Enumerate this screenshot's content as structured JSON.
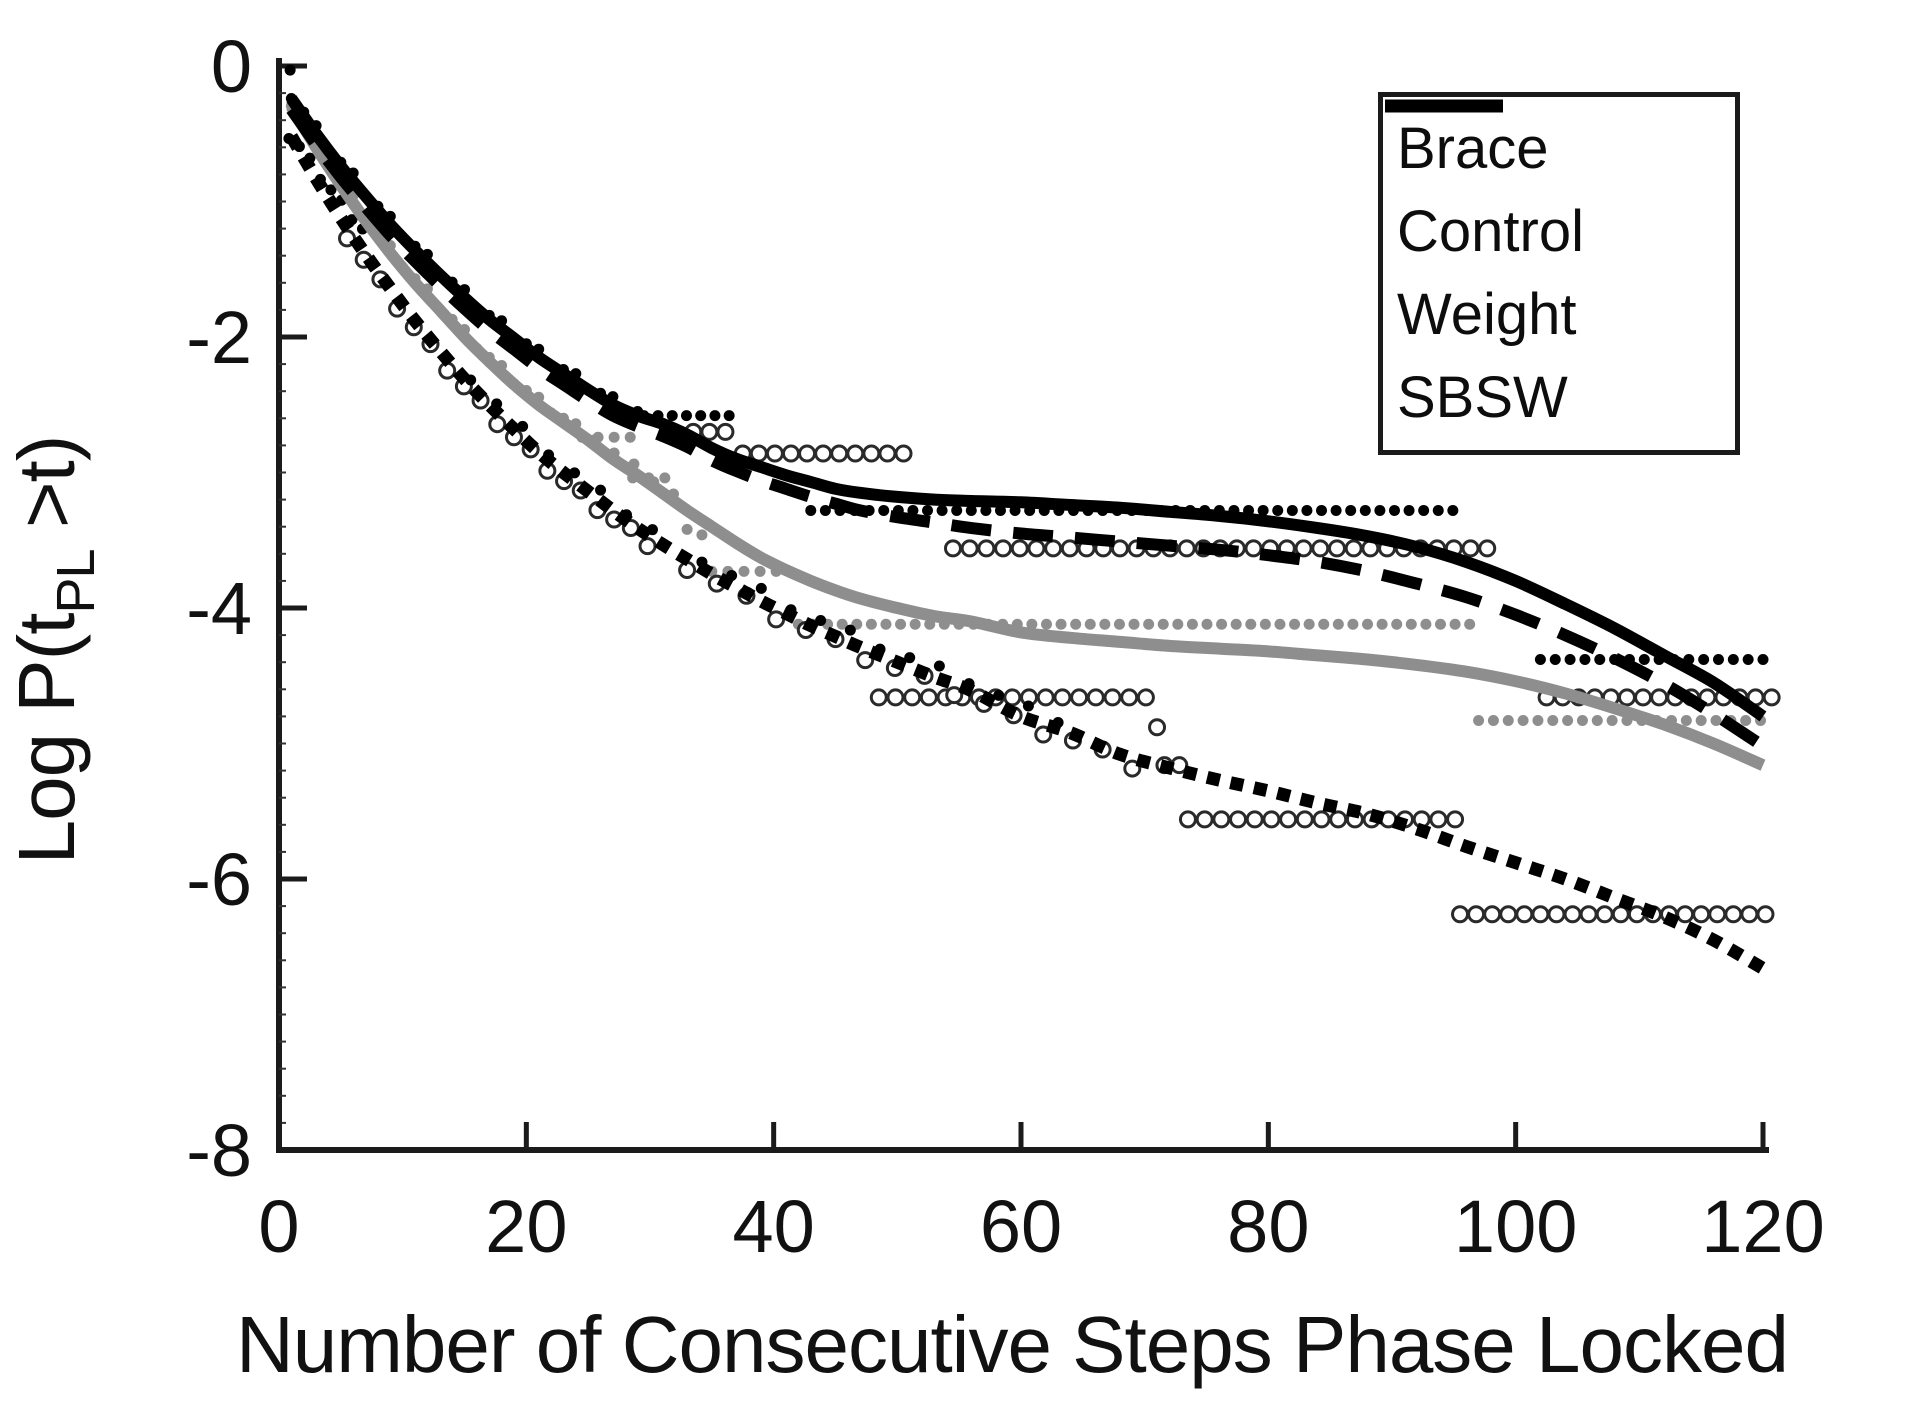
{
  "chart_data": {
    "type": "line",
    "title": "",
    "xlabel": "Number of Consecutive Steps Phase Locked",
    "ylabel": "Log P(t_PL >t)",
    "ylabel_parts": {
      "pre": "Log P(t",
      "sub": "PL",
      "post": " >t)"
    },
    "xlim": [
      0,
      122
    ],
    "ylim": [
      -8,
      0
    ],
    "xticks": [
      0,
      20,
      40,
      60,
      80,
      100,
      120
    ],
    "yticks": [
      0,
      -2,
      -4,
      -6,
      -8
    ],
    "grid": false,
    "background": "#ffffff",
    "colors": {
      "black": "#000000",
      "gray": "#8e8e8e",
      "axis": "#1b1b1b",
      "circle_stroke": "#2a2a2a"
    },
    "legend": {
      "position": "top-right",
      "entries": [
        {
          "label": "Brace",
          "color": "#8e8e8e",
          "dash": "",
          "width": 13
        },
        {
          "label": "Control",
          "color": "#000000",
          "dash": "",
          "width": 13
        },
        {
          "label": "Weight",
          "color": "#000000",
          "dash": "36 20",
          "width": 12
        },
        {
          "label": "SBSW",
          "color": "#000000",
          "dash": "14 12",
          "width": 13
        }
      ]
    },
    "series": [
      {
        "name": "Brace",
        "style": "solid",
        "color": "#8e8e8e",
        "width": 12,
        "dash": "",
        "points": [
          [
            1,
            -0.3
          ],
          [
            3,
            -0.6
          ],
          [
            5,
            -0.88
          ],
          [
            7,
            -1.14
          ],
          [
            9,
            -1.38
          ],
          [
            11,
            -1.6
          ],
          [
            13,
            -1.8
          ],
          [
            15,
            -2.0
          ],
          [
            17,
            -2.18
          ],
          [
            19,
            -2.35
          ],
          [
            21,
            -2.5
          ],
          [
            23,
            -2.63
          ],
          [
            25,
            -2.76
          ],
          [
            27,
            -2.9
          ],
          [
            29,
            -3.02
          ],
          [
            31,
            -3.15
          ],
          [
            33,
            -3.28
          ],
          [
            35,
            -3.4
          ],
          [
            37,
            -3.52
          ],
          [
            39,
            -3.63
          ],
          [
            41,
            -3.72
          ],
          [
            43,
            -3.8
          ],
          [
            45,
            -3.87
          ],
          [
            47,
            -3.93
          ],
          [
            50,
            -4.0
          ],
          [
            53,
            -4.06
          ],
          [
            56,
            -4.1
          ],
          [
            60,
            -4.18
          ],
          [
            64,
            -4.22
          ],
          [
            68,
            -4.25
          ],
          [
            72,
            -4.28
          ],
          [
            76,
            -4.3
          ],
          [
            80,
            -4.32
          ],
          [
            84,
            -4.35
          ],
          [
            88,
            -4.38
          ],
          [
            92,
            -4.42
          ],
          [
            96,
            -4.47
          ],
          [
            100,
            -4.54
          ],
          [
            104,
            -4.63
          ],
          [
            108,
            -4.74
          ],
          [
            112,
            -4.86
          ],
          [
            116,
            -5.0
          ],
          [
            120,
            -5.16
          ]
        ]
      },
      {
        "name": "Control",
        "style": "solid",
        "color": "#000000",
        "width": 12,
        "dash": "",
        "points": [
          [
            1,
            -0.24
          ],
          [
            3,
            -0.5
          ],
          [
            5,
            -0.74
          ],
          [
            7,
            -0.96
          ],
          [
            9,
            -1.17
          ],
          [
            11,
            -1.36
          ],
          [
            13,
            -1.54
          ],
          [
            15,
            -1.71
          ],
          [
            17,
            -1.87
          ],
          [
            19,
            -2.01
          ],
          [
            21,
            -2.15
          ],
          [
            23,
            -2.27
          ],
          [
            25,
            -2.39
          ],
          [
            27,
            -2.5
          ],
          [
            29,
            -2.58
          ],
          [
            31,
            -2.64
          ],
          [
            33,
            -2.72
          ],
          [
            35,
            -2.82
          ],
          [
            37,
            -2.9
          ],
          [
            39,
            -2.96
          ],
          [
            41,
            -3.02
          ],
          [
            43,
            -3.07
          ],
          [
            45,
            -3.12
          ],
          [
            47,
            -3.15
          ],
          [
            50,
            -3.18
          ],
          [
            53,
            -3.2
          ],
          [
            56,
            -3.21
          ],
          [
            60,
            -3.22
          ],
          [
            64,
            -3.24
          ],
          [
            68,
            -3.26
          ],
          [
            72,
            -3.29
          ],
          [
            76,
            -3.32
          ],
          [
            80,
            -3.36
          ],
          [
            84,
            -3.41
          ],
          [
            88,
            -3.47
          ],
          [
            92,
            -3.55
          ],
          [
            96,
            -3.66
          ],
          [
            100,
            -3.8
          ],
          [
            104,
            -3.97
          ],
          [
            108,
            -4.15
          ],
          [
            112,
            -4.35
          ],
          [
            116,
            -4.55
          ],
          [
            120,
            -4.8
          ]
        ]
      },
      {
        "name": "Weight",
        "style": "dashed",
        "color": "#000000",
        "width": 12,
        "dash": "40 22",
        "points": [
          [
            1,
            -0.32
          ],
          [
            3,
            -0.58
          ],
          [
            5,
            -0.82
          ],
          [
            7,
            -1.04
          ],
          [
            9,
            -1.25
          ],
          [
            11,
            -1.44
          ],
          [
            13,
            -1.62
          ],
          [
            15,
            -1.79
          ],
          [
            17,
            -1.95
          ],
          [
            19,
            -2.09
          ],
          [
            21,
            -2.23
          ],
          [
            23,
            -2.35
          ],
          [
            25,
            -2.47
          ],
          [
            27,
            -2.58
          ],
          [
            29,
            -2.66
          ],
          [
            31,
            -2.73
          ],
          [
            33,
            -2.81
          ],
          [
            35,
            -2.91
          ],
          [
            37,
            -2.99
          ],
          [
            39,
            -3.06
          ],
          [
            41,
            -3.12
          ],
          [
            43,
            -3.18
          ],
          [
            45,
            -3.23
          ],
          [
            47,
            -3.28
          ],
          [
            50,
            -3.33
          ],
          [
            53,
            -3.37
          ],
          [
            56,
            -3.41
          ],
          [
            60,
            -3.45
          ],
          [
            64,
            -3.48
          ],
          [
            68,
            -3.51
          ],
          [
            72,
            -3.54
          ],
          [
            76,
            -3.57
          ],
          [
            80,
            -3.61
          ],
          [
            84,
            -3.66
          ],
          [
            88,
            -3.73
          ],
          [
            92,
            -3.82
          ],
          [
            96,
            -3.92
          ],
          [
            100,
            -4.05
          ],
          [
            104,
            -4.2
          ],
          [
            108,
            -4.37
          ],
          [
            112,
            -4.56
          ],
          [
            116,
            -4.78
          ],
          [
            120,
            -5.02
          ]
        ]
      },
      {
        "name": "SBSW",
        "style": "dotted",
        "color": "#000000",
        "width": 13,
        "dash": "13 11",
        "points": [
          [
            1,
            -0.52
          ],
          [
            3,
            -0.83
          ],
          [
            5,
            -1.12
          ],
          [
            7,
            -1.39
          ],
          [
            9,
            -1.64
          ],
          [
            11,
            -1.88
          ],
          [
            13,
            -2.1
          ],
          [
            15,
            -2.31
          ],
          [
            17,
            -2.5
          ],
          [
            19,
            -2.68
          ],
          [
            21,
            -2.85
          ],
          [
            23,
            -3.0
          ],
          [
            25,
            -3.14
          ],
          [
            27,
            -3.28
          ],
          [
            29,
            -3.41
          ],
          [
            31,
            -3.53
          ],
          [
            33,
            -3.64
          ],
          [
            35,
            -3.75
          ],
          [
            37,
            -3.85
          ],
          [
            39,
            -3.95
          ],
          [
            41,
            -4.04
          ],
          [
            43,
            -4.13
          ],
          [
            45,
            -4.21
          ],
          [
            47,
            -4.29
          ],
          [
            50,
            -4.4
          ],
          [
            53,
            -4.51
          ],
          [
            56,
            -4.61
          ],
          [
            60,
            -4.8
          ],
          [
            64,
            -4.92
          ],
          [
            68,
            -5.08
          ],
          [
            72,
            -5.18
          ],
          [
            76,
            -5.27
          ],
          [
            80,
            -5.35
          ],
          [
            84,
            -5.44
          ],
          [
            88,
            -5.52
          ],
          [
            92,
            -5.63
          ],
          [
            96,
            -5.76
          ],
          [
            100,
            -5.88
          ],
          [
            104,
            -6.0
          ],
          [
            108,
            -6.14
          ],
          [
            112,
            -6.28
          ],
          [
            116,
            -6.45
          ],
          [
            120,
            -6.66
          ]
        ]
      }
    ],
    "scatter_runs": [
      {
        "marker": "blackdot",
        "y": -2.58,
        "x0": 29.5,
        "x1": 36.5,
        "step": 1.15
      },
      {
        "marker": "blackdot",
        "y": -3.28,
        "x0": 43.0,
        "x1": 95.0,
        "step": 1.18
      },
      {
        "marker": "blackdot",
        "y": -4.38,
        "x0": 102.0,
        "x1": 120.5,
        "step": 1.2
      },
      {
        "marker": "graydot",
        "y": -2.74,
        "x0": 24.5,
        "x1": 28.5,
        "step": 1.3
      },
      {
        "marker": "graydot",
        "y": -3.04,
        "x0": 28.6,
        "x1": 31.4,
        "step": 1.3
      },
      {
        "marker": "graydot",
        "y": -3.73,
        "x0": 35.0,
        "x1": 40.2,
        "step": 1.3
      },
      {
        "marker": "graydot",
        "y": -4.12,
        "x0": 42.0,
        "x1": 96.5,
        "step": 1.18
      },
      {
        "marker": "graydot",
        "y": -4.83,
        "x0": 97.0,
        "x1": 120.5,
        "step": 1.2
      },
      {
        "marker": "circle",
        "y": -2.7,
        "x0": 33.5,
        "x1": 36.3,
        "step": 1.3
      },
      {
        "marker": "circle",
        "y": -2.86,
        "x0": 37.5,
        "x1": 50.5,
        "step": 1.3
      },
      {
        "marker": "circle",
        "y": -3.56,
        "x0": 54.5,
        "x1": 99.0,
        "step": 1.35
      },
      {
        "marker": "circle",
        "y": -4.66,
        "x0": 48.5,
        "x1": 71.0,
        "step": 1.35
      },
      {
        "marker": "circle",
        "y": -4.66,
        "x0": 102.5,
        "x1": 120.8,
        "step": 1.3
      },
      {
        "marker": "circle",
        "y": -5.56,
        "x0": 73.5,
        "x1": 95.7,
        "step": 1.35
      },
      {
        "marker": "circle",
        "y": -6.26,
        "x0": 95.5,
        "x1": 120.8,
        "step": 1.3
      }
    ],
    "scatter_trails": [
      {
        "marker": "blackdot",
        "series": "Control",
        "x0": 1.0,
        "x1": 29.0,
        "step": 1.0,
        "dv": 0.03,
        "jitter": 0.06
      },
      {
        "marker": "blackdot",
        "series": "Control",
        "x0": 0.8,
        "x1": 7.5,
        "step": 0.85,
        "dv": -0.27,
        "jitter": 0.05
      },
      {
        "marker": "graydot",
        "series": "Brace",
        "x0": 1.0,
        "x1": 24.0,
        "step": 1.0,
        "dv": 0.03,
        "jitter": 0.05
      },
      {
        "marker": "graydot",
        "series": "Brace",
        "x0": 25.5,
        "x1": 32.5,
        "step": 1.6,
        "dv": 0.05,
        "jitter": 0.03
      },
      {
        "marker": "circle",
        "series": "SBSW",
        "x0": 5.5,
        "x1": 31.0,
        "step": 1.35,
        "dv": -0.06,
        "jitter": 0.05
      },
      {
        "marker": "blackdot",
        "series": "SBSW",
        "x0": 15.5,
        "x1": 32.0,
        "step": 2.1,
        "dv": 0.06,
        "jitter": 0.04
      },
      {
        "marker": "circle",
        "series": "SBSW",
        "x0": 33.0,
        "x1": 71.0,
        "step": 2.4,
        "dv": -0.05,
        "jitter": 0.06
      },
      {
        "marker": "blackdot",
        "series": "SBSW",
        "x0": 34.2,
        "x1": 63.0,
        "step": 2.4,
        "dv": 0.07,
        "jitter": 0.05
      }
    ],
    "scatter_points": [
      {
        "marker": "blackdot",
        "x": 0.9,
        "y": -0.03
      },
      {
        "marker": "circle",
        "x": 71.0,
        "y": -4.88
      },
      {
        "marker": "circle",
        "x": 71.6,
        "y": -5.16
      },
      {
        "marker": "circle",
        "x": 72.8,
        "y": -5.16
      },
      {
        "marker": "graydot",
        "x": 33.0,
        "y": -3.42
      },
      {
        "marker": "graydot",
        "x": 34.2,
        "y": -3.46
      }
    ]
  }
}
